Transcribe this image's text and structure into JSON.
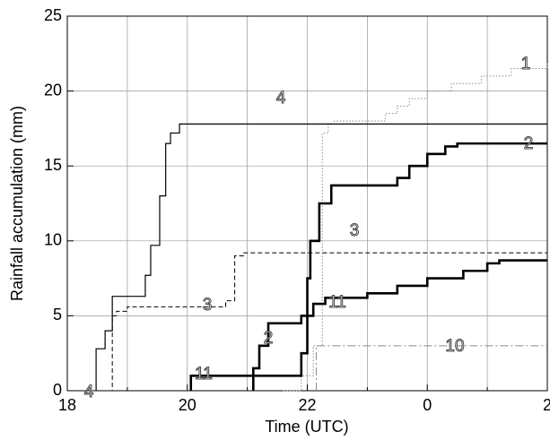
{
  "chart_data": {
    "type": "step",
    "x_label": "Time  (UTC)",
    "y_label": "Rainfall accumulation  (mm)",
    "xlim": [
      18,
      26
    ],
    "ylim": [
      0,
      25
    ],
    "xticks": [
      18,
      20,
      22,
      {
        "value": 24,
        "label": "0"
      },
      {
        "value": 26,
        "label": "2"
      }
    ],
    "x_minor_ticks": [
      19,
      21,
      23,
      25
    ],
    "yticks": [
      0,
      5,
      10,
      15,
      20,
      25
    ],
    "grid": true,
    "series": [
      {
        "name": "1",
        "color": "#8a8a8a",
        "line_style": "dotted",
        "width": 1,
        "x": [
          21.6,
          21.9,
          22.1,
          22.25,
          22.35,
          22.45,
          23.3,
          23.5,
          23.7,
          24.0,
          24.4,
          24.9,
          25.4,
          26
        ],
        "values": [
          0,
          1,
          3,
          17.2,
          17.8,
          18.0,
          18.5,
          19.0,
          19.5,
          20.0,
          20.5,
          21.0,
          21.5,
          21.9
        ]
      },
      {
        "name": "2",
        "color": "#000000",
        "line_style": "solid",
        "width": 2.6,
        "x": [
          21.1,
          21.1,
          21.2,
          21.35,
          21.9,
          22.0,
          22.05,
          22.2,
          22.4,
          23.5,
          23.7,
          24.0,
          24.3,
          24.5,
          26
        ],
        "values": [
          0,
          1.5,
          3.0,
          4.5,
          5.0,
          7.5,
          10.0,
          12.5,
          13.7,
          14.2,
          15.0,
          15.8,
          16.3,
          16.5,
          16.5
        ]
      },
      {
        "name": "3",
        "color": "#000000",
        "line_style": "dashed",
        "width": 1,
        "x": [
          18.57,
          18.75,
          18.82,
          19.0,
          20.64,
          20.79,
          20.94,
          26
        ],
        "values": [
          0,
          5.0,
          5.3,
          5.6,
          6.0,
          9.0,
          9.2,
          9.2
        ]
      },
      {
        "name": "4",
        "color": "#000000",
        "line_style": "solid",
        "width": 1.2,
        "x": [
          18.48,
          18.48,
          18.63,
          18.75,
          19.3,
          19.39,
          19.54,
          19.64,
          19.72,
          19.87,
          26
        ],
        "values": [
          0,
          2.8,
          4.0,
          6.3,
          7.7,
          9.7,
          13,
          16.5,
          17.2,
          17.8,
          17.8
        ]
      },
      {
        "name": "10",
        "color": "#8a8a8a",
        "line_style": "dashdot",
        "width": 1,
        "x": [
          22.15,
          22.15,
          26
        ],
        "values": [
          0,
          3.0,
          3.0
        ]
      },
      {
        "name": "11",
        "color": "#000000",
        "line_style": "solid",
        "width": 2.6,
        "x": [
          20.06,
          20.06,
          21.9,
          22.0,
          22.1,
          22.3,
          23.0,
          23.5,
          24.0,
          24.6,
          25.0,
          25.2,
          26
        ],
        "values": [
          0,
          1.0,
          2.5,
          5.0,
          5.8,
          6.2,
          6.5,
          7.0,
          7.5,
          8.0,
          8.5,
          8.7,
          8.7
        ]
      }
    ]
  }
}
